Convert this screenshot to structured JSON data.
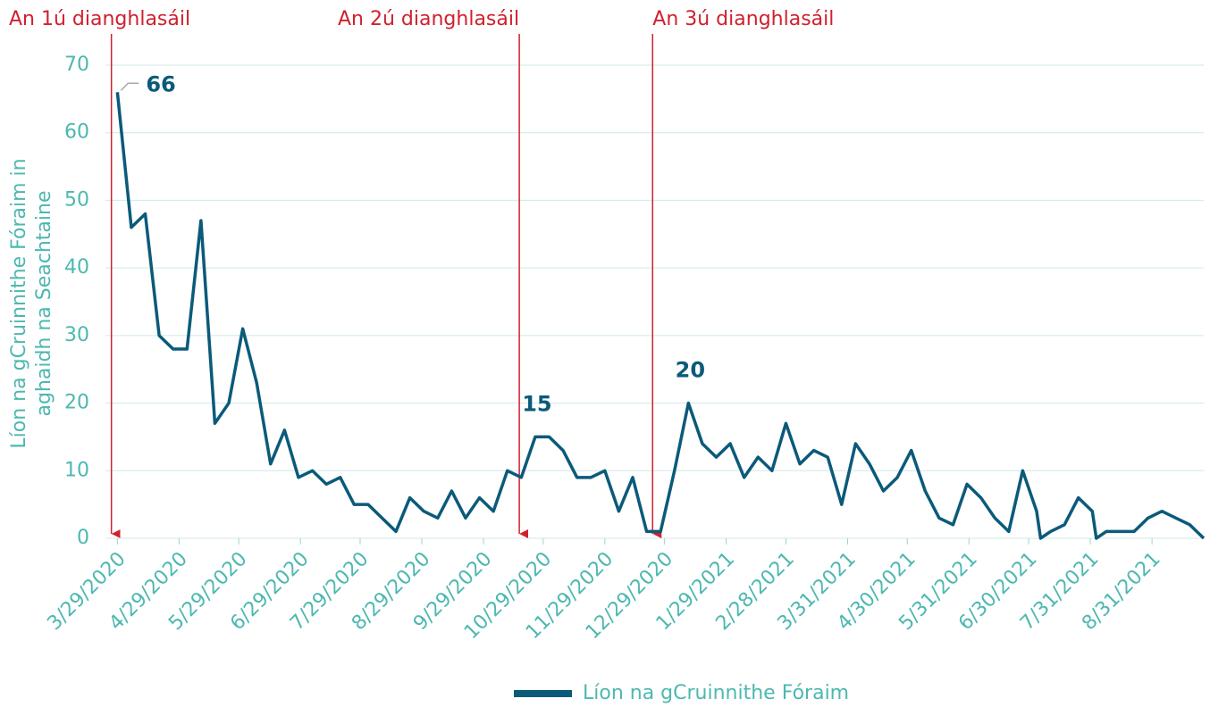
{
  "chart_data": {
    "type": "line",
    "y_label": [
      "Líon na gCruinnithe Fóraim in",
      "aghaidh na Seachtaine"
    ],
    "x": [
      "2020-03-29",
      "2020-04-05",
      "2020-04-12",
      "2020-04-19",
      "2020-04-26",
      "2020-05-03",
      "2020-05-10",
      "2020-05-17",
      "2020-05-24",
      "2020-05-31",
      "2020-06-07",
      "2020-06-14",
      "2020-06-21",
      "2020-06-28",
      "2020-07-05",
      "2020-07-12",
      "2020-07-19",
      "2020-07-26",
      "2020-08-02",
      "2020-08-09",
      "2020-08-16",
      "2020-08-23",
      "2020-08-30",
      "2020-09-06",
      "2020-09-13",
      "2020-09-20",
      "2020-09-27",
      "2020-10-04",
      "2020-10-11",
      "2020-10-18",
      "2020-10-25",
      "2020-11-01",
      "2020-11-08",
      "2020-11-15",
      "2020-11-22",
      "2020-11-29",
      "2020-12-06",
      "2020-12-13",
      "2020-12-20",
      "2020-12-27",
      "2021-01-03",
      "2021-01-10",
      "2021-01-17",
      "2021-01-24",
      "2021-01-31",
      "2021-02-07",
      "2021-02-14",
      "2021-02-21",
      "2021-02-28",
      "2021-03-07",
      "2021-03-14",
      "2021-03-21",
      "2021-03-28",
      "2021-04-04",
      "2021-04-11",
      "2021-04-18",
      "2021-04-25",
      "2021-05-02",
      "2021-05-09",
      "2021-05-16",
      "2021-05-23",
      "2021-05-30",
      "2021-06-06",
      "2021-06-13",
      "2021-06-20",
      "2021-06-27",
      "2021-07-04",
      "2021-07-06",
      "2021-07-11",
      "2021-07-18",
      "2021-07-25",
      "2021-08-01",
      "2021-08-03",
      "2021-08-08",
      "2021-08-15",
      "2021-08-22",
      "2021-08-29",
      "2021-09-05",
      "2021-09-12",
      "2021-09-19",
      "2021-09-26"
    ],
    "series": [
      {
        "name": "Líon na gCruinnithe Fóraim",
        "color": "#0b5a7a",
        "values": [
          66,
          46,
          48,
          30,
          28,
          28,
          47,
          17,
          20,
          31,
          23,
          11,
          16,
          9,
          10,
          8,
          9,
          5,
          5,
          3,
          1,
          6,
          4,
          3,
          7,
          3,
          6,
          4,
          10,
          9,
          15,
          15,
          13,
          9,
          9,
          10,
          4,
          9,
          1,
          1,
          10,
          20,
          14,
          12,
          14,
          9,
          12,
          10,
          17,
          11,
          13,
          12,
          5,
          14,
          11,
          7,
          9,
          13,
          7,
          3,
          2,
          8,
          6,
          3,
          1,
          10,
          4,
          0,
          1,
          2,
          6,
          4,
          0,
          1,
          1,
          1,
          3,
          4,
          3,
          2,
          0
        ],
        "labeled": [
          0,
          30,
          41
        ]
      }
    ],
    "events": [
      {
        "date": "2020-03-26",
        "label": "An 1ú dianghlasáil"
      },
      {
        "date": "2020-10-17",
        "label": "An 2ú dianghlasáil"
      },
      {
        "date": "2020-12-23",
        "label": "An 3ú dianghlasáil"
      }
    ],
    "xlim": [
      "2020-03-23",
      "2021-09-26"
    ],
    "xticks": [
      {
        "value": "2020-03-29",
        "label": "3/29/2020"
      },
      {
        "value": "2020-04-29",
        "label": "4/29/2020"
      },
      {
        "value": "2020-05-29",
        "label": "5/29/2020"
      },
      {
        "value": "2020-06-29",
        "label": "6/29/2020"
      },
      {
        "value": "2020-07-29",
        "label": "7/29/2020"
      },
      {
        "value": "2020-08-29",
        "label": "8/29/2020"
      },
      {
        "value": "2020-09-29",
        "label": "9/29/2020"
      },
      {
        "value": "2020-10-29",
        "label": "10/29/2020"
      },
      {
        "value": "2020-11-29",
        "label": "11/29/2020"
      },
      {
        "value": "2020-12-29",
        "label": "12/29/2020"
      },
      {
        "value": "2021-01-29",
        "label": "1/29/2021"
      },
      {
        "value": "2021-02-28",
        "label": "2/28/2021"
      },
      {
        "value": "2021-03-31",
        "label": "3/31/2021"
      },
      {
        "value": "2021-04-30",
        "label": "4/30/2021"
      },
      {
        "value": "2021-05-31",
        "label": "5/31/2021"
      },
      {
        "value": "2021-06-30",
        "label": "6/30/2021"
      },
      {
        "value": "2021-07-31",
        "label": "7/31/2021"
      },
      {
        "value": "2021-08-31",
        "label": "8/31/2021"
      }
    ],
    "ylim": [
      0,
      70
    ],
    "yticks": [
      0,
      10,
      20,
      30,
      40,
      50,
      60,
      70
    ],
    "grid": true,
    "legend": "bottom",
    "event_color": "#d0202e",
    "axis_color": "#4db8b0"
  }
}
